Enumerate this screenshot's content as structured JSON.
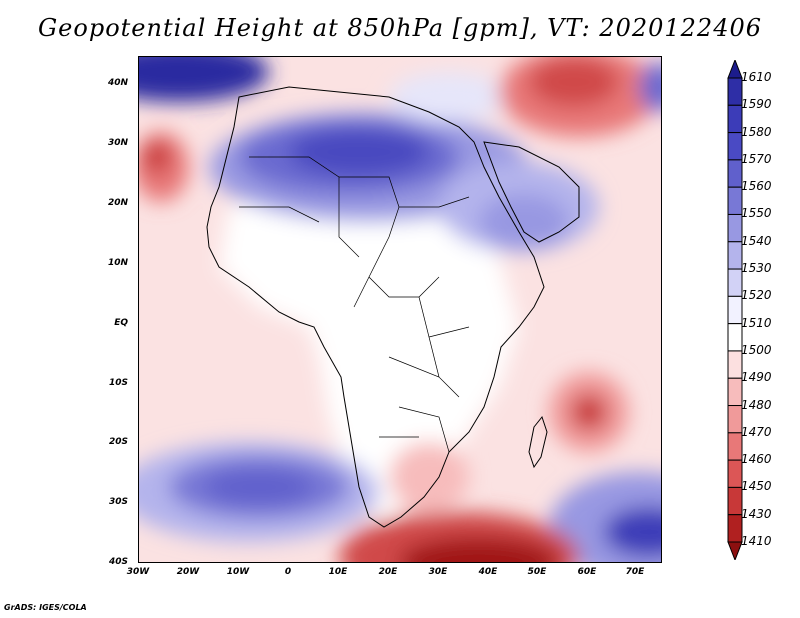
{
  "title": "Geopotential Height at 850hPa [gpm], VT: 2020122406",
  "credit": "GrADS: IGES/COLA",
  "map": {
    "lat_labels": [
      "40N",
      "30N",
      "20N",
      "10N",
      "EQ",
      "10S",
      "20S",
      "30S",
      "40S"
    ],
    "lon_labels": [
      "30W",
      "20W",
      "10W",
      "0",
      "10E",
      "20E",
      "30E",
      "40E",
      "50E",
      "60E",
      "70E"
    ]
  },
  "colorbar": {
    "levels": [
      "1610",
      "1590",
      "1580",
      "1570",
      "1560",
      "1550",
      "1540",
      "1530",
      "1520",
      "1510",
      "1500",
      "1490",
      "1480",
      "1470",
      "1460",
      "1450",
      "1430",
      "1410"
    ],
    "colors": [
      "#1c1c8c",
      "#2e2ea6",
      "#3c3cb8",
      "#4a4ac4",
      "#6060cc",
      "#7878d6",
      "#9898e2",
      "#b4b4ec",
      "#d2d2f6",
      "#f2f2ff",
      "#ffffff",
      "#fce0e0",
      "#f7bcbc",
      "#f09a9a",
      "#e87878",
      "#dc5656",
      "#c83838",
      "#b02020",
      "#8c1010"
    ]
  }
}
